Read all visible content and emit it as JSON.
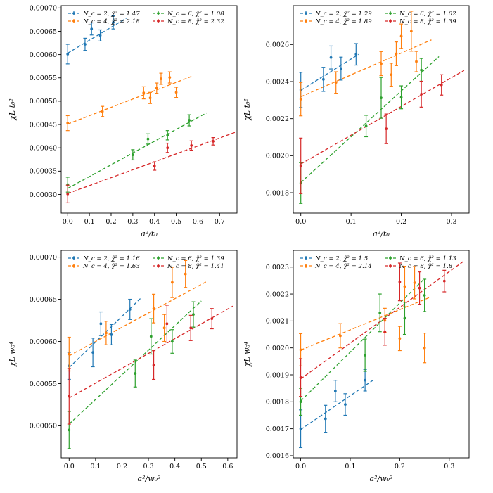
{
  "colors": {
    "Nc2": "#1f77b4",
    "Nc4": "#ff7f0e",
    "Nc6": "#2ca02c",
    "Nc8": "#d62728"
  },
  "chart_data": [
    {
      "type": "scatter",
      "xlabel": "a²/t₀",
      "ylabel": "χL t₀²",
      "xlim": [
        -0.03,
        0.78
      ],
      "ylim": [
        0.00026,
        0.000705
      ],
      "xticks": [
        0,
        0.1,
        0.2,
        0.3,
        0.4,
        0.5,
        0.6,
        0.7
      ],
      "xtick_labels": [
        "0.0",
        "0.1",
        "0.2",
        "0.3",
        "0.4",
        "0.5",
        "0.6",
        "0.7"
      ],
      "yticks": [
        0.0003,
        0.00035,
        0.0004,
        0.00045,
        0.0005,
        0.00055,
        0.0006,
        0.00065,
        0.0007
      ],
      "ytick_labels": [
        "0.00030",
        "0.00035",
        "0.00040",
        "0.00045",
        "0.00050",
        "0.00055",
        "0.00060",
        "0.00065",
        "0.00070"
      ],
      "series": [
        {
          "name": "Nc2",
          "legend": "N_c = 2, χ̃² = 1.47",
          "color_key": "Nc2",
          "x": [
            0.0,
            0.08,
            0.11,
            0.15,
            0.21
          ],
          "y": [
            0.000601,
            0.000622,
            0.000655,
            0.000641,
            0.000669
          ],
          "err": [
            2.1e-05,
            1.3e-05,
            1.3e-05,
            1.2e-05,
            1.4e-05
          ],
          "fit": {
            "x0": 0.0,
            "x1": 0.27,
            "y0": 0.000603,
            "y1": 0.000678
          }
        },
        {
          "name": "Nc4",
          "legend": "N_c = 4, χ̃² = 2.18",
          "color_key": "Nc4",
          "x": [
            0.0,
            0.16,
            0.35,
            0.38,
            0.41,
            0.43,
            0.47,
            0.5
          ],
          "y": [
            0.000453,
            0.000478,
            0.000518,
            0.000507,
            0.000528,
            0.000548,
            0.000551,
            0.000519
          ],
          "err": [
            1.6e-05,
            1.1e-05,
            1.3e-05,
            1.2e-05,
            1.1e-05,
            1.2e-05,
            1.2e-05,
            1.1e-05
          ],
          "fit": {
            "x0": 0.0,
            "x1": 0.57,
            "y0": 0.000451,
            "y1": 0.000553
          }
        },
        {
          "name": "Nc6",
          "legend": "N_c = 6, χ̃² = 1.08",
          "color_key": "Nc6",
          "x": [
            0.0,
            0.3,
            0.37,
            0.46,
            0.56
          ],
          "y": [
            0.000321,
            0.000385,
            0.000419,
            0.000427,
            0.000459
          ],
          "err": [
            1.6e-05,
            1.1e-05,
            1.1e-05,
            1e-05,
            1.2e-05
          ],
          "fit": {
            "x0": 0.0,
            "x1": 0.64,
            "y0": 0.000313,
            "y1": 0.000475
          }
        },
        {
          "name": "Nc8",
          "legend": "N_c = 8, χ̃² = 2.32",
          "color_key": "Nc8",
          "x": [
            0.0,
            0.4,
            0.46,
            0.57,
            0.67
          ],
          "y": [
            0.000301,
            0.000361,
            0.0004,
            0.000405,
            0.000414
          ],
          "err": [
            1.9e-05,
            9e-06,
            1e-05,
            1e-05,
            8e-06
          ],
          "fit": {
            "x0": 0.0,
            "x1": 0.77,
            "y0": 0.000302,
            "y1": 0.000433
          }
        }
      ]
    },
    {
      "type": "scatter",
      "xlabel": "a²/t₀",
      "ylabel": "χL t₀²",
      "xlim": [
        -0.015,
        0.335
      ],
      "ylim": [
        0.00169,
        0.00281
      ],
      "xticks": [
        0,
        0.1,
        0.2,
        0.3
      ],
      "xtick_labels": [
        "0.0",
        "0.1",
        "0.2",
        "0.3"
      ],
      "yticks": [
        0.0018,
        0.002,
        0.0022,
        0.0024,
        0.0026
      ],
      "ytick_labels": [
        "0.0018",
        "0.0020",
        "0.0022",
        "0.0024",
        "0.0026"
      ],
      "series": [
        {
          "name": "Nc2",
          "legend": "N_c = 2, χ̃² = 1.29",
          "color_key": "Nc2",
          "x": [
            0.0,
            0.045,
            0.06,
            0.08,
            0.11
          ],
          "y": [
            0.002355,
            0.002412,
            0.00253,
            0.00247,
            0.002547
          ],
          "err": [
            9.5e-05,
            6.5e-05,
            6.2e-05,
            6.2e-05,
            5.8e-05
          ],
          "fit": {
            "x0": 0.0,
            "x1": 0.115,
            "y0": 0.002353,
            "y1": 0.002547
          }
        },
        {
          "name": "Nc4",
          "legend": "N_c = 4, χ̃² = 1.89",
          "color_key": "Nc4",
          "x": [
            0.0,
            0.07,
            0.16,
            0.18,
            0.19,
            0.2,
            0.22,
            0.23
          ],
          "y": [
            0.002305,
            0.002395,
            0.002497,
            0.002437,
            0.00255,
            0.002645,
            0.002672,
            0.002508
          ],
          "err": [
            9e-05,
            5.8e-05,
            6.5e-05,
            6.2e-05,
            6.4e-05,
            6.6e-05,
            0.000108,
            5.5e-05
          ],
          "fit": {
            "x0": 0.0,
            "x1": 0.26,
            "y0": 0.002318,
            "y1": 0.002625
          }
        },
        {
          "name": "Nc6",
          "legend": "N_c = 6, χ̃² = 1.02",
          "color_key": "Nc6",
          "x": [
            0.0,
            0.13,
            0.16,
            0.2,
            0.24
          ],
          "y": [
            0.001852,
            0.00216,
            0.002312,
            0.002315,
            0.002462
          ],
          "err": [
            0.00011,
            5.8e-05,
            0.00011,
            6.2e-05,
            6.3e-05
          ],
          "fit": {
            "x0": 0.0,
            "x1": 0.275,
            "y0": 0.001855,
            "y1": 0.002535
          }
        },
        {
          "name": "Nc8",
          "legend": "N_c = 8, χ̃² = 1.39",
          "color_key": "Nc8",
          "x": [
            0.0,
            0.17,
            0.24,
            0.28
          ],
          "y": [
            0.001945,
            0.002145,
            0.002332,
            0.002382
          ],
          "err": [
            0.00015,
            8e-05,
            7e-05,
            5.5e-05
          ],
          "fit": {
            "x0": 0.0,
            "x1": 0.325,
            "y0": 0.001955,
            "y1": 0.00246
          }
        }
      ]
    },
    {
      "type": "scatter",
      "xlabel": "a²/w₀²",
      "ylabel": "χL w₀⁴",
      "xlim": [
        -0.03,
        0.635
      ],
      "ylim": [
        0.000462,
        0.000708
      ],
      "xticks": [
        0,
        0.1,
        0.2,
        0.3,
        0.4,
        0.5,
        0.6
      ],
      "xtick_labels": [
        "0.0",
        "0.1",
        "0.2",
        "0.3",
        "0.4",
        "0.5",
        "0.6"
      ],
      "yticks": [
        0.0005,
        0.00055,
        0.0006,
        0.00065,
        0.0007
      ],
      "ytick_labels": [
        "0.00050",
        "0.00055",
        "0.00060",
        "0.00065",
        "0.00070"
      ],
      "series": [
        {
          "name": "Nc2",
          "legend": "N_c = 2, χ̃² = 1.16",
          "color_key": "Nc2",
          "x": [
            0.0,
            0.09,
            0.12,
            0.16,
            0.23
          ],
          "y": [
            0.000571,
            0.000587,
            0.000621,
            0.000608,
            0.000638
          ],
          "err": [
            1.6e-05,
            1.7e-05,
            1.4e-05,
            1.2e-05,
            1.2e-05
          ],
          "fit": {
            "x0": 0.0,
            "x1": 0.27,
            "y0": 0.000569,
            "y1": 0.000651
          }
        },
        {
          "name": "Nc4",
          "legend": "N_c = 4, χ̃² = 1.63",
          "color_key": "Nc4",
          "x": [
            0.0,
            0.14,
            0.32,
            0.36,
            0.39,
            0.44
          ],
          "y": [
            0.000585,
            0.00061,
            0.000639,
            0.000616,
            0.00067,
            0.00068
          ],
          "err": [
            2e-05,
            1.4e-05,
            1.7e-05,
            1.6e-05,
            1.8e-05,
            1.6e-05
          ],
          "fit": {
            "x0": 0.0,
            "x1": 0.52,
            "y0": 0.000583,
            "y1": 0.000671
          }
        },
        {
          "name": "Nc6",
          "legend": "N_c = 6, χ̃² = 1.39",
          "color_key": "Nc6",
          "x": [
            0.0,
            0.25,
            0.31,
            0.39,
            0.47
          ],
          "y": [
            0.000495,
            0.000562,
            0.000606,
            0.0006,
            0.000632
          ],
          "err": [
            2.2e-05,
            1.6e-05,
            2.1e-05,
            1.4e-05,
            1.5e-05
          ],
          "fit": {
            "x0": 0.0,
            "x1": 0.5,
            "y0": 0.000502,
            "y1": 0.000648
          }
        },
        {
          "name": "Nc8",
          "legend": "N_c = 8, χ̃² = 1.41",
          "color_key": "Nc8",
          "x": [
            0.0,
            0.32,
            0.37,
            0.46,
            0.54
          ],
          "y": [
            0.000535,
            0.000572,
            0.000621,
            0.000616,
            0.000627
          ],
          "err": [
            3.3e-05,
            1.7e-05,
            2.2e-05,
            1.5e-05,
            1.2e-05
          ],
          "fit": {
            "x0": 0.0,
            "x1": 0.62,
            "y0": 0.000533,
            "y1": 0.000642
          }
        }
      ]
    },
    {
      "type": "scatter",
      "xlabel": "a²/w₀²",
      "ylabel": "χL w₀⁴",
      "xlim": [
        -0.015,
        0.34
      ],
      "ylim": [
        0.001592,
        0.002362
      ],
      "xticks": [
        0,
        0.1,
        0.2,
        0.3
      ],
      "xtick_labels": [
        "0.0",
        "0.1",
        "0.2",
        "0.3"
      ],
      "yticks": [
        0.0016,
        0.0017,
        0.0018,
        0.0019,
        0.002,
        0.0021,
        0.0022,
        0.0023
      ],
      "ytick_labels": [
        "0.0016",
        "0.0017",
        "0.0018",
        "0.0019",
        "0.0020",
        "0.0021",
        "0.0022",
        "0.0023"
      ],
      "series": [
        {
          "name": "Nc2",
          "legend": "N_c = 2, χ̃² = 1.5",
          "color_key": "Nc2",
          "x": [
            0.0,
            0.05,
            0.07,
            0.09,
            0.13
          ],
          "y": [
            0.0017,
            0.001737,
            0.00184,
            0.00179,
            0.00188
          ],
          "err": [
            7e-05,
            5e-05,
            4e-05,
            4e-05,
            4e-05
          ],
          "fit": {
            "x0": 0.0,
            "x1": 0.15,
            "y0": 0.001697,
            "y1": 0.001885
          }
        },
        {
          "name": "Nc4",
          "legend": "N_c = 4, χ̃² = 2.14",
          "color_key": "Nc4",
          "x": [
            0.0,
            0.08,
            0.17,
            0.2,
            0.21,
            0.23,
            0.25
          ],
          "y": [
            0.001993,
            0.002045,
            0.002102,
            0.002035,
            0.002228,
            0.002242,
            0.002
          ],
          "err": [
            6e-05,
            4.5e-05,
            4.5e-05,
            4.5e-05,
            7.5e-05,
            6e-05,
            5.5e-05
          ],
          "fit": {
            "x0": 0.0,
            "x1": 0.26,
            "y0": 0.001992,
            "y1": 0.002187
          }
        },
        {
          "name": "Nc6",
          "legend": "N_c = 6, χ̃² = 1.13",
          "color_key": "Nc6",
          "x": [
            0.0,
            0.13,
            0.16,
            0.21,
            0.25
          ],
          "y": [
            0.0018,
            0.001973,
            0.00213,
            0.00211,
            0.002195
          ],
          "err": [
            5e-05,
            6e-05,
            7e-05,
            6e-05,
            6e-05
          ],
          "fit": {
            "x0": 0.0,
            "x1": 0.25,
            "y0": 0.001803,
            "y1": 0.002257
          }
        },
        {
          "name": "Nc8",
          "legend": "N_c = 8, χ̃² = 1.8",
          "color_key": "Nc8",
          "x": [
            0.0,
            0.17,
            0.2,
            0.24,
            0.29
          ],
          "y": [
            0.00189,
            0.00206,
            0.002245,
            0.002222,
            0.002248
          ],
          "err": [
            7e-05,
            5e-05,
            7e-05,
            6e-05,
            4e-05
          ],
          "fit": {
            "x0": 0.0,
            "x1": 0.33,
            "y0": 0.001885,
            "y1": 0.002323
          }
        }
      ]
    }
  ]
}
